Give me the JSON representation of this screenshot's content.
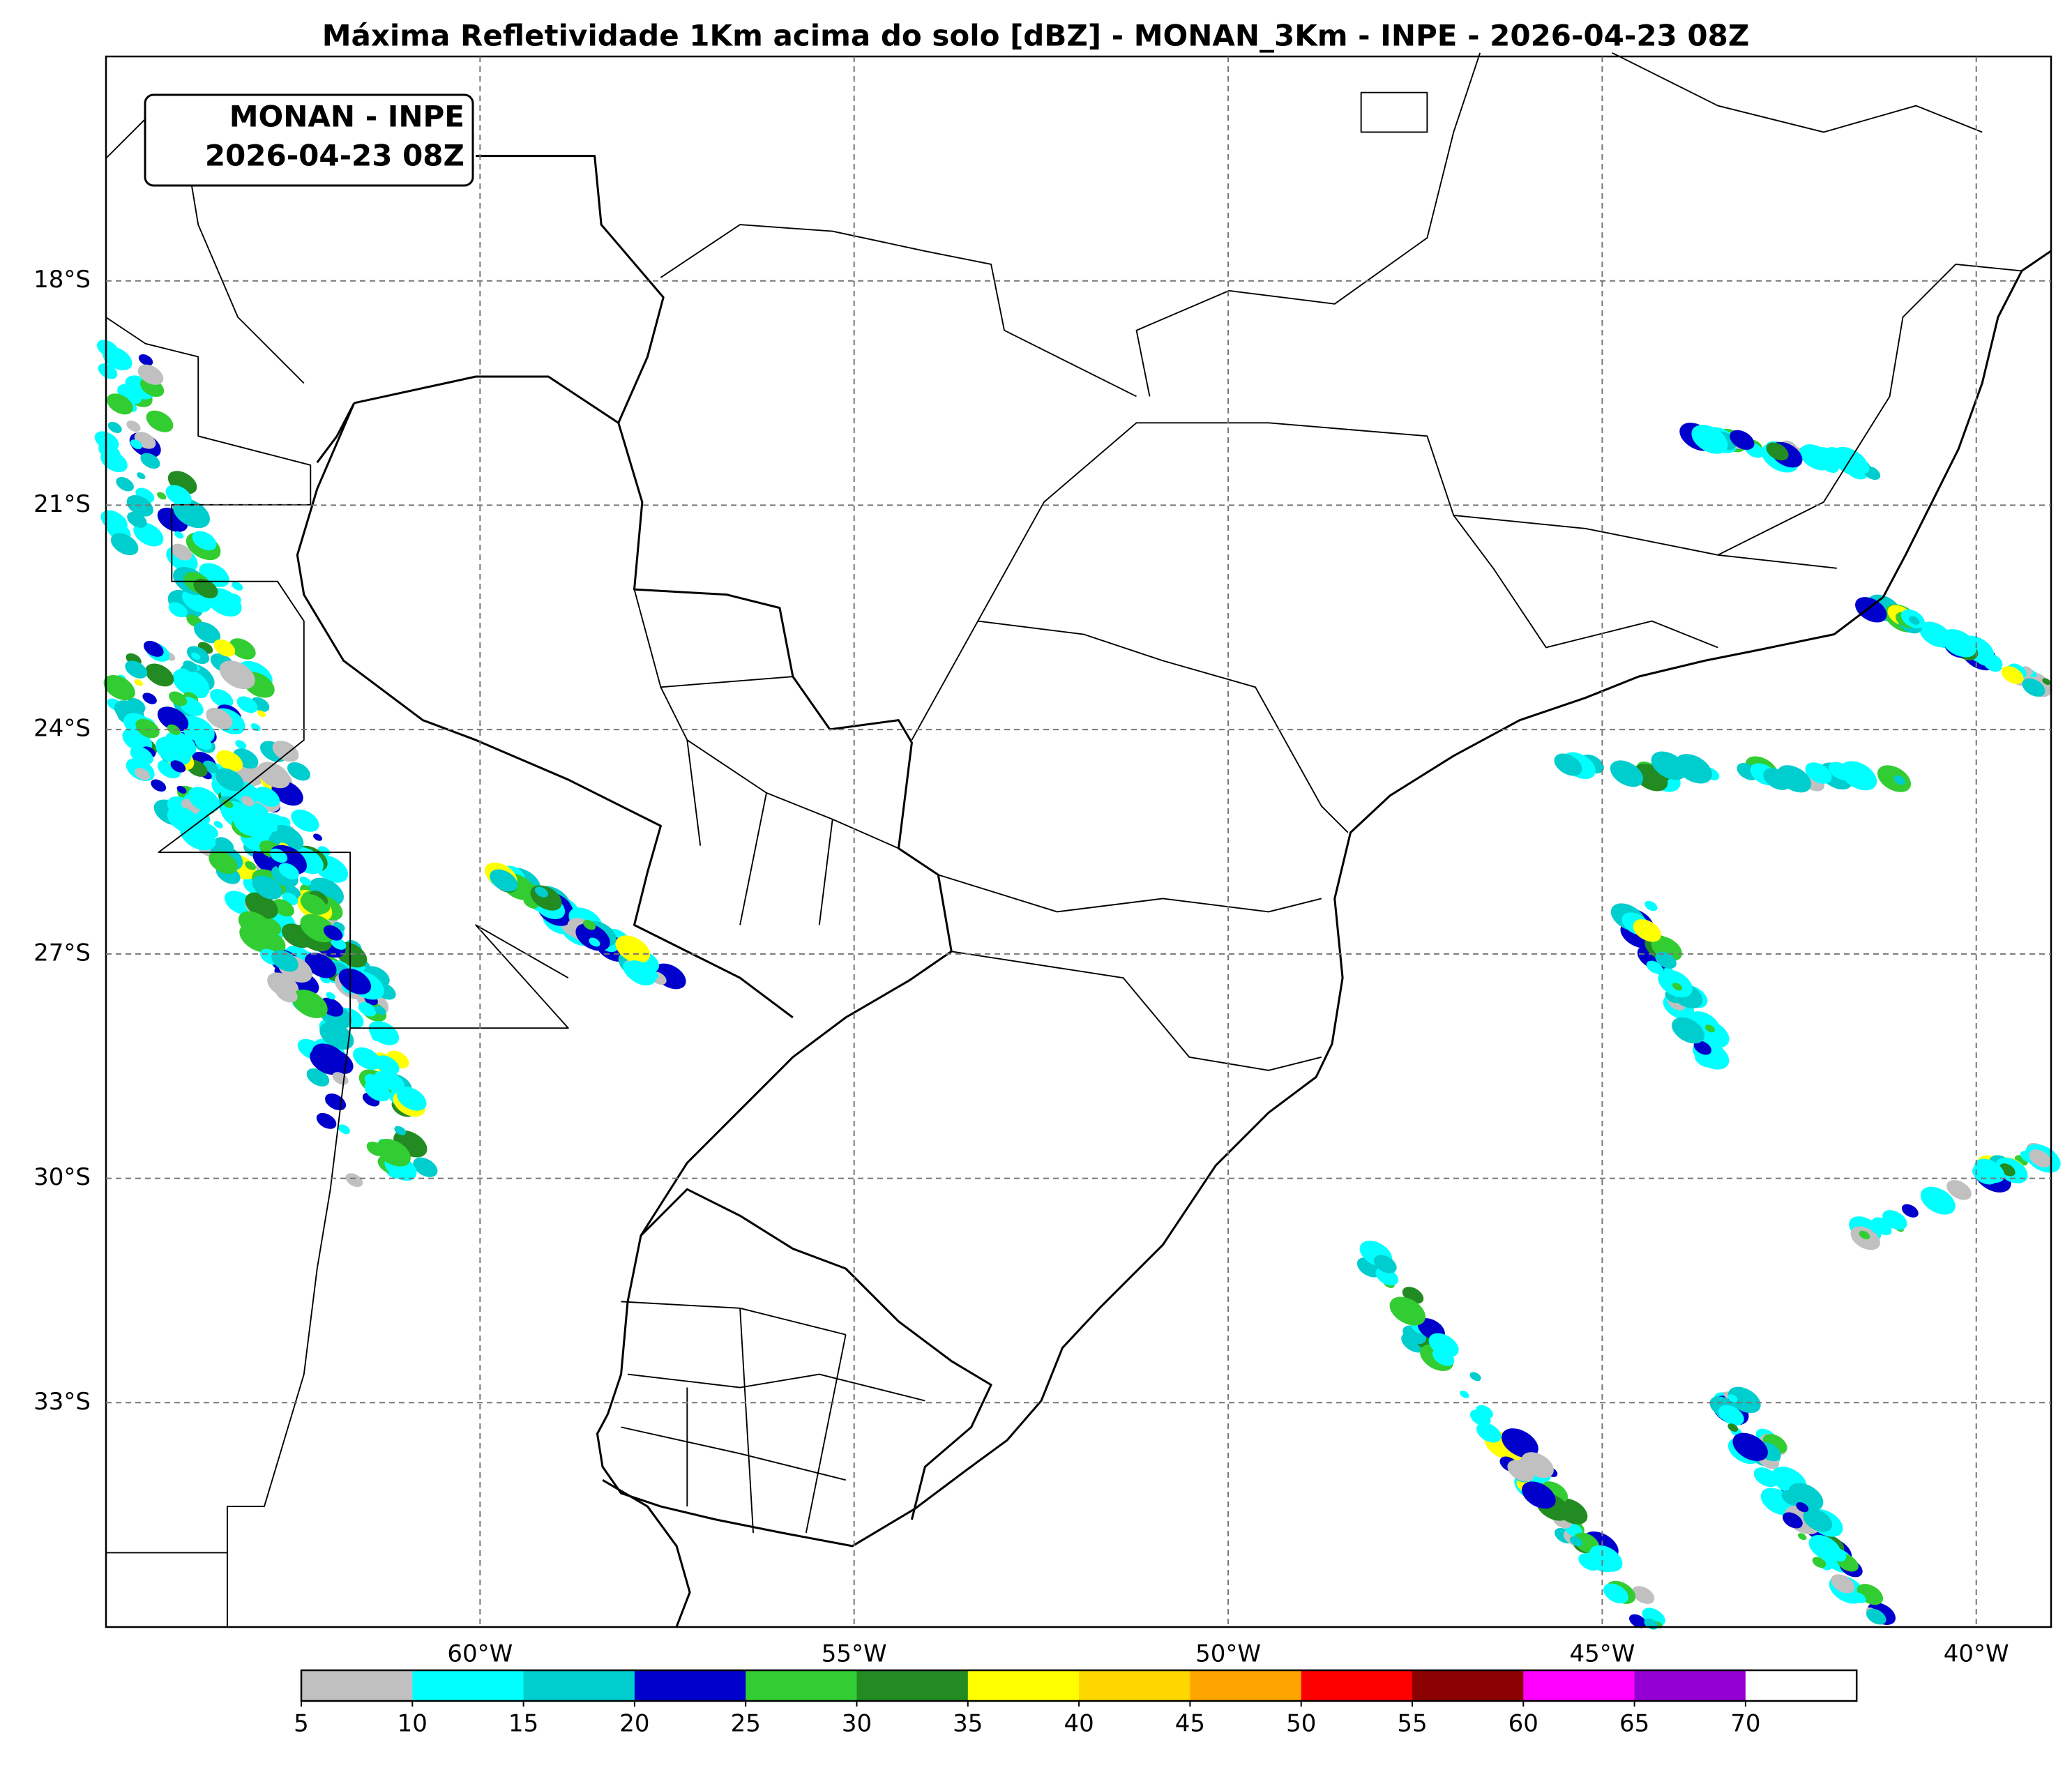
{
  "chart_data": {
    "type": "map",
    "title": "Máxima Refletividade 1Km acima do solo [dBZ] - MONAN_3Km - INPE - 2026-04-23 08Z",
    "annotation": [
      "MONAN - INPE",
      "2026-04-23 08Z"
    ],
    "xlim": [
      -65,
      -39
    ],
    "ylim": [
      -36,
      -15
    ],
    "xticks": [
      {
        "value": -60,
        "label": "60°W"
      },
      {
        "value": -55,
        "label": "55°W"
      },
      {
        "value": -50,
        "label": "50°W"
      },
      {
        "value": -45,
        "label": "45°W"
      },
      {
        "value": -40,
        "label": "40°W"
      }
    ],
    "yticks": [
      {
        "value": -18,
        "label": "18°S"
      },
      {
        "value": -21,
        "label": "21°S"
      },
      {
        "value": -24,
        "label": "24°S"
      },
      {
        "value": -27,
        "label": "27°S"
      },
      {
        "value": -30,
        "label": "30°S"
      },
      {
        "value": -33,
        "label": "33°S"
      }
    ],
    "grid": true,
    "colorbar": {
      "levels": [
        5,
        10,
        15,
        20,
        25,
        30,
        35,
        40,
        45,
        50,
        55,
        60,
        65,
        70
      ],
      "colors": [
        "#c0c0c0",
        "#00ffff",
        "#00cdcd",
        "#0000cd",
        "#32cd32",
        "#228b22",
        "#ffff00",
        "#ffd700",
        "#ffa500",
        "#ff0000",
        "#8b0000",
        "#ff00ff",
        "#9400d3"
      ],
      "over_color": "#ffffff"
    }
  }
}
